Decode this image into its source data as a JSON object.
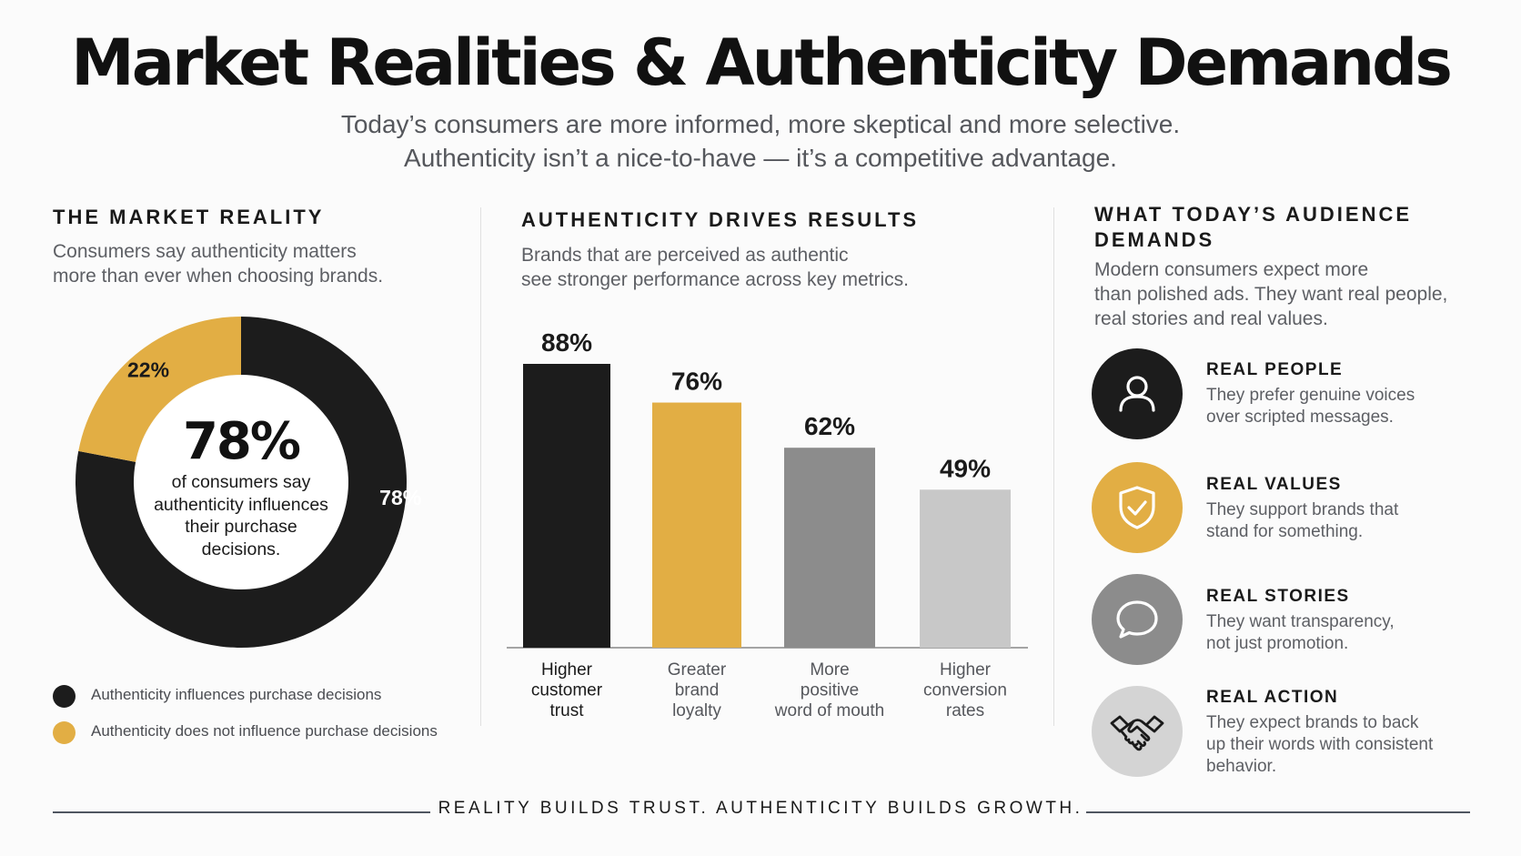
{
  "title": "Market Realities & Authenticity Demands",
  "subtitle": {
    "line1": "Today’s consumers are more informed, more skeptical and more selective.",
    "line2": "Authenticity isn’t a nice-to-have — it’s a competitive advantage."
  },
  "market_reality": {
    "heading": "THE MARKET REALITY",
    "desc_line1": "Consumers say authenticity matters",
    "desc_line2": "more than ever when choosing brands.",
    "center_value": "78%",
    "center_caption_line1": "of consumers say",
    "center_caption_line2": "authenticity influences",
    "center_caption_line3": "their purchase",
    "center_caption_line4": "decisions."
  },
  "drives_results": {
    "heading": "AUTHENTICITY DRIVES RESULTS",
    "desc_line1": "Brands that are perceived as authentic",
    "desc_line2": "see stronger performance across key metrics."
  },
  "audience_demands": {
    "heading_line1": "WHAT TODAY’S AUDIENCE",
    "heading_line2": "DEMANDS",
    "desc_line1": "Modern consumers expect more",
    "desc_line2": "than polished ads. They want real people,",
    "desc_line3": "real stories and real values.",
    "items": [
      {
        "title": "REAL PEOPLE",
        "line1": "They prefer genuine voices",
        "line2": "over scripted messages.",
        "line3": "",
        "icon": "person-icon",
        "color": "#1c1c1c"
      },
      {
        "title": "REAL VALUES",
        "line1": "They support brands that",
        "line2": "stand for something.",
        "line3": "",
        "icon": "shield-check-icon",
        "color": "#e2ae44"
      },
      {
        "title": "REAL STORIES",
        "line1": "They want transparency,",
        "line2": "not just promotion.",
        "line3": "",
        "icon": "speech-bubble-icon",
        "color": "#8c8c8c"
      },
      {
        "title": "REAL ACTION",
        "line1": "They expect brands to back",
        "line2": "up their words with consistent",
        "line3": "behavior.",
        "icon": "handshake-icon",
        "color": "#d4d4d4"
      }
    ]
  },
  "footer": "REALITY BUILDS TRUST. AUTHENTICITY BUILDS GROWTH.",
  "colors": {
    "black": "#1c1c1c",
    "gold": "#e2ae44",
    "mid_gray": "#8c8c8c",
    "light_gray": "#c8c8c8"
  },
  "chart_data": [
    {
      "type": "pie",
      "variant": "donut",
      "slices": [
        {
          "label": "Authenticity influences purchase decisions",
          "value": 78,
          "display": "78%",
          "color": "#1c1c1c"
        },
        {
          "label": "Authenticity does not influence purchase decisions",
          "value": 22,
          "display": "22%",
          "color": "#e2ae44"
        }
      ],
      "legend_position": "bottom"
    },
    {
      "type": "bar",
      "categories": [
        [
          "Higher",
          "customer",
          "trust"
        ],
        [
          "Greater",
          "brand",
          "loyalty"
        ],
        [
          "More",
          "positive",
          "word of mouth"
        ],
        [
          "Higher",
          "conversion",
          "rates"
        ]
      ],
      "values": [
        88,
        76,
        62,
        49
      ],
      "value_labels": [
        "88%",
        "76%",
        "62%",
        "49%"
      ],
      "colors": [
        "#1c1c1c",
        "#e2ae44",
        "#8c8c8c",
        "#c8c8c8"
      ],
      "ylim": [
        0,
        100
      ],
      "grid": false
    }
  ]
}
